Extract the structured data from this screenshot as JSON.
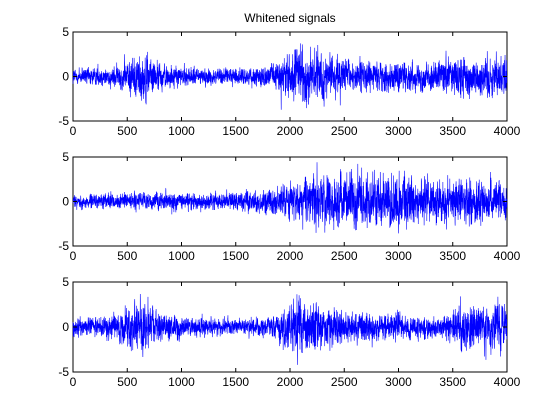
{
  "chart_data": [
    {
      "type": "line",
      "title": "Whitened signals",
      "xlabel": "",
      "ylabel": "",
      "xlim": [
        0,
        4000
      ],
      "ylim": [
        -5,
        5
      ],
      "xticks": [
        0,
        500,
        1000,
        1500,
        2000,
        2500,
        3000,
        3500,
        4000
      ],
      "yticks": [
        -5,
        0,
        5
      ],
      "xtick_labels": [
        "0",
        "500",
        "1000",
        "1500",
        "2000",
        "2500",
        "3000",
        "3500",
        "4000"
      ],
      "ytick_labels": [
        "-5",
        "0",
        "5"
      ],
      "grid": false,
      "series": [
        {
          "color": "#0000ff",
          "n_samples": 4000,
          "envelope_x": [
            0,
            200,
            400,
            550,
            650,
            800,
            1000,
            1300,
            1600,
            1800,
            1950,
            2050,
            2150,
            2300,
            2500,
            2800,
            3100,
            3300,
            3500,
            3700,
            3900,
            4000
          ],
          "envelope_amp": [
            1.1,
            1.2,
            1.3,
            2.5,
            3.0,
            1.6,
            1.2,
            1.0,
            1.0,
            1.2,
            2.8,
            3.3,
            3.4,
            2.5,
            2.0,
            1.8,
            1.7,
            1.7,
            2.5,
            2.5,
            2.6,
            2.5
          ]
        }
      ]
    },
    {
      "type": "line",
      "title": "",
      "xlim": [
        0,
        4000
      ],
      "ylim": [
        -5,
        5
      ],
      "xticks": [
        0,
        500,
        1000,
        1500,
        2000,
        2500,
        3000,
        3500,
        4000
      ],
      "yticks": [
        -5,
        0,
        5
      ],
      "xtick_labels": [
        "0",
        "500",
        "1000",
        "1500",
        "2000",
        "2500",
        "3000",
        "3500",
        "4000"
      ],
      "ytick_labels": [
        "-5",
        "0",
        "5"
      ],
      "grid": false,
      "series": [
        {
          "color": "#0000ff",
          "n_samples": 4000,
          "envelope_x": [
            0,
            300,
            600,
            1000,
            1500,
            1800,
            2000,
            2200,
            2500,
            2800,
            3000,
            3300,
            3600,
            3800,
            4000
          ],
          "envelope_amp": [
            0.8,
            0.9,
            1.0,
            1.0,
            1.1,
            1.4,
            2.0,
            2.8,
            3.1,
            3.3,
            3.0,
            2.6,
            2.6,
            2.4,
            2.2
          ]
        }
      ]
    },
    {
      "type": "line",
      "title": "",
      "xlim": [
        0,
        4000
      ],
      "ylim": [
        -5,
        5
      ],
      "xticks": [
        0,
        500,
        1000,
        1500,
        2000,
        2500,
        3000,
        3500,
        4000
      ],
      "yticks": [
        -5,
        0,
        5
      ],
      "xtick_labels": [
        "0",
        "500",
        "1000",
        "1500",
        "2000",
        "2500",
        "3000",
        "3500",
        "4000"
      ],
      "ytick_labels": [
        "-5",
        "0",
        "5"
      ],
      "grid": false,
      "series": [
        {
          "color": "#0000ff",
          "n_samples": 4000,
          "envelope_x": [
            0,
            200,
            400,
            550,
            650,
            800,
            1000,
            1300,
            1600,
            1800,
            1950,
            2050,
            2150,
            2300,
            2500,
            2800,
            3100,
            3400,
            3550,
            3700,
            3900,
            4000
          ],
          "envelope_amp": [
            1.0,
            1.2,
            1.5,
            2.6,
            3.0,
            1.8,
            1.2,
            1.0,
            1.0,
            1.2,
            2.8,
            3.3,
            3.5,
            2.5,
            2.0,
            1.6,
            1.5,
            1.3,
            2.5,
            2.8,
            2.8,
            2.6
          ]
        }
      ]
    }
  ]
}
